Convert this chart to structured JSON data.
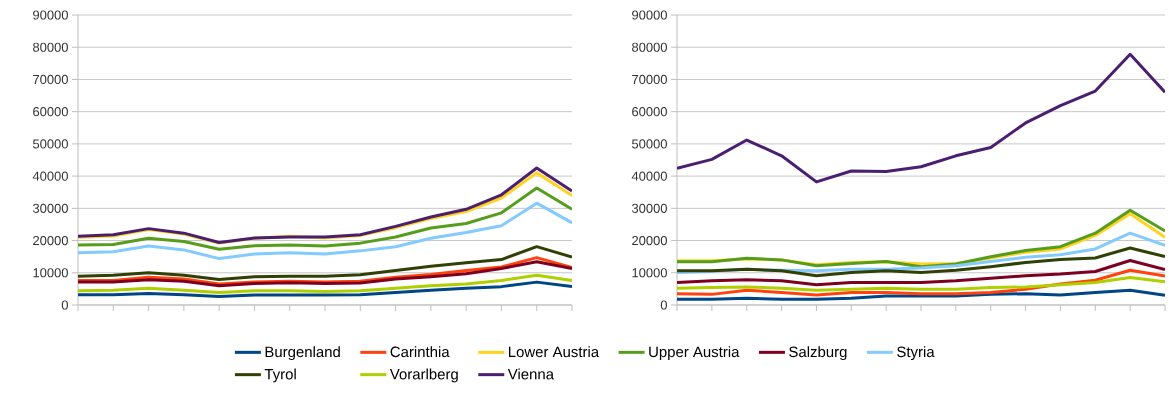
{
  "chart_data": [
    {
      "type": "line",
      "categories": [
        null,
        null,
        null,
        null,
        null,
        null,
        null,
        null,
        null,
        null,
        null,
        null,
        null,
        null,
        null
      ],
      "ylim": [
        0,
        90000
      ],
      "yticks": [
        0,
        10000,
        20000,
        30000,
        40000,
        50000,
        60000,
        70000,
        80000,
        90000
      ],
      "grid": "y",
      "legend": "bottom",
      "tick_labels": "y",
      "marker": "none",
      "line_style": "solid",
      "series": [
        {
          "name": "Burgenland",
          "color": "#004586",
          "values": [
            3200,
            3200,
            3600,
            3200,
            2600,
            3100,
            3100,
            3100,
            3200,
            3900,
            4600,
            5200,
            5700,
            7100,
            5700
          ]
        },
        {
          "name": "Carinthia",
          "color": "#ff420e",
          "values": [
            7600,
            7600,
            8600,
            8100,
            6500,
            7100,
            7400,
            7100,
            7400,
            8600,
            9500,
            10700,
            11800,
            14700,
            11600
          ]
        },
        {
          "name": "Lower Austria",
          "color": "#ffd320",
          "values": [
            21000,
            21400,
            23400,
            22000,
            19200,
            20700,
            21300,
            20800,
            21600,
            24000,
            26800,
            29000,
            33200,
            41000,
            34000
          ]
        },
        {
          "name": "Upper Austria",
          "color": "#579d1c",
          "values": [
            18600,
            18800,
            20700,
            19700,
            17300,
            18400,
            18600,
            18300,
            19200,
            21100,
            23900,
            25300,
            28600,
            36300,
            29700
          ]
        },
        {
          "name": "Salzburg",
          "color": "#7e0021",
          "values": [
            7100,
            7100,
            7800,
            7400,
            6000,
            6700,
            6900,
            6700,
            6800,
            8100,
            8800,
            9700,
            11300,
            13400,
            11300
          ]
        },
        {
          "name": "Styria",
          "color": "#83caff",
          "values": [
            16200,
            16500,
            18300,
            17100,
            14400,
            15800,
            16200,
            15800,
            16800,
            18100,
            20700,
            22500,
            24600,
            31600,
            25500
          ]
        },
        {
          "name": "Tyrol",
          "color": "#314004",
          "values": [
            8900,
            9200,
            10000,
            9200,
            7900,
            8800,
            8900,
            8900,
            9400,
            10700,
            12000,
            13100,
            14100,
            18100,
            14900
          ]
        },
        {
          "name": "Vorarlberg",
          "color": "#aecf00",
          "values": [
            4400,
            4600,
            5200,
            4600,
            3900,
            4400,
            4400,
            4200,
            4400,
            5200,
            6000,
            6500,
            7600,
            9200,
            7600
          ]
        },
        {
          "name": "Vienna",
          "color": "#4b1f6f",
          "values": [
            21300,
            21800,
            23700,
            22300,
            19400,
            20800,
            21100,
            21100,
            21800,
            24400,
            27300,
            29700,
            34200,
            42500,
            35400
          ]
        }
      ]
    },
    {
      "type": "line",
      "categories": [
        null,
        null,
        null,
        null,
        null,
        null,
        null,
        null,
        null,
        null,
        null,
        null,
        null,
        null,
        null
      ],
      "ylim": [
        0,
        90000
      ],
      "yticks": [
        0,
        10000,
        20000,
        30000,
        40000,
        50000,
        60000,
        70000,
        80000,
        90000
      ],
      "grid": "y",
      "tick_labels": "y",
      "marker": "none",
      "line_style": "solid",
      "series": [
        {
          "color": "#004586",
          "values": [
            1800,
            1800,
            2100,
            1800,
            1800,
            2100,
            2800,
            2800,
            2800,
            3300,
            3500,
            3100,
            3900,
            4600,
            3000
          ]
        },
        {
          "color": "#ff420e",
          "values": [
            3500,
            3300,
            4600,
            3900,
            3100,
            3900,
            3900,
            3500,
            3500,
            3900,
            4900,
            6500,
            7700,
            10800,
            9000
          ]
        },
        {
          "color": "#ffd320",
          "values": [
            13700,
            13700,
            14300,
            14000,
            12500,
            13200,
            13400,
            12700,
            12900,
            14600,
            16400,
            17400,
            21600,
            28300,
            21000
          ]
        },
        {
          "color": "#579d1c",
          "values": [
            13400,
            13400,
            14500,
            14000,
            12200,
            12900,
            13500,
            11900,
            12700,
            15000,
            16900,
            18100,
            22300,
            29400,
            23000
          ]
        },
        {
          "color": "#7e0021",
          "values": [
            7000,
            7500,
            7800,
            7500,
            6300,
            7000,
            7000,
            7000,
            7500,
            8300,
            9100,
            9600,
            10400,
            13800,
            11000
          ]
        },
        {
          "color": "#83caff",
          "values": [
            10100,
            10400,
            11100,
            10800,
            10600,
            11100,
            11100,
            11500,
            12200,
            13500,
            14800,
            15600,
            17400,
            22300,
            18500
          ]
        },
        {
          "color": "#314004",
          "values": [
            10600,
            10600,
            11100,
            10600,
            9100,
            10100,
            10600,
            10100,
            10800,
            11900,
            13200,
            14100,
            14600,
            17700,
            15000
          ]
        },
        {
          "color": "#aecf00",
          "values": [
            5200,
            5400,
            5600,
            5200,
            4600,
            4900,
            5200,
            4900,
            4900,
            5400,
            5600,
            6300,
            7000,
            8500,
            7200
          ]
        },
        {
          "color": "#4b1f6f",
          "values": [
            42400,
            45200,
            51200,
            46300,
            38200,
            41600,
            41400,
            42900,
            46300,
            48900,
            56500,
            61900,
            66400,
            77800,
            66000
          ]
        }
      ]
    }
  ]
}
